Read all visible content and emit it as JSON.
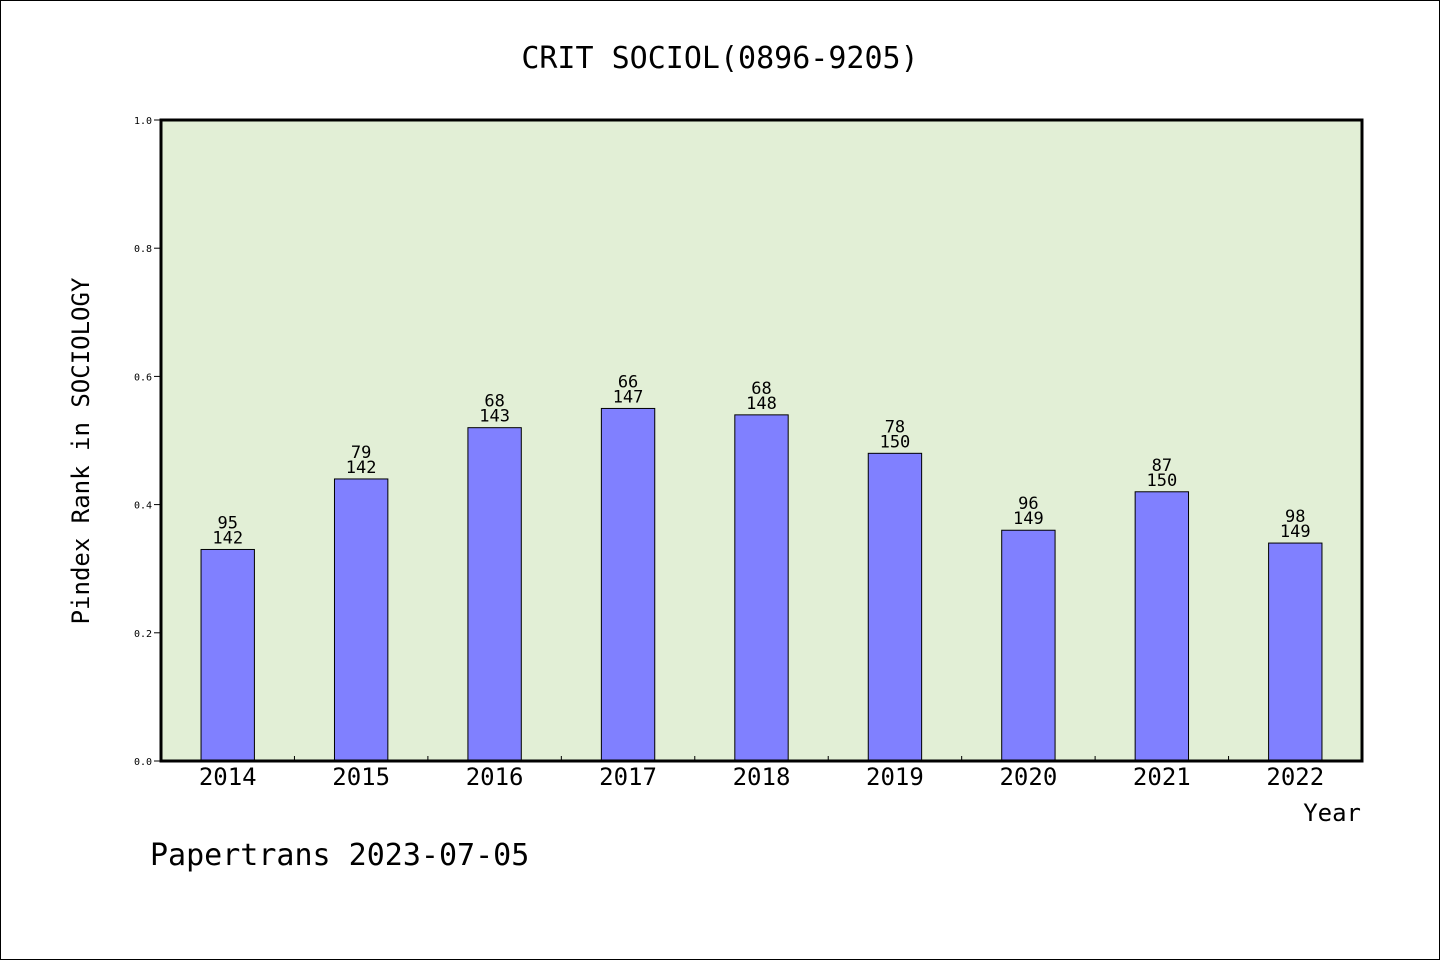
{
  "chart_data": {
    "type": "bar",
    "title": "CRIT SOCIOL(0896-9205)",
    "xlabel": "Year",
    "ylabel": "Pindex Rank in SOCIOLOGY",
    "ylim": [
      0,
      1.0
    ],
    "yticks": [
      "0.0",
      "0.2",
      "0.4",
      "0.6",
      "0.8",
      "1.0"
    ],
    "categories": [
      "2014",
      "2015",
      "2016",
      "2017",
      "2018",
      "2019",
      "2020",
      "2021",
      "2022"
    ],
    "values": [
      0.33,
      0.44,
      0.52,
      0.55,
      0.54,
      0.48,
      0.36,
      0.42,
      0.34
    ],
    "rank": [
      "95",
      "79",
      "68",
      "66",
      "68",
      "78",
      "96",
      "87",
      "98"
    ],
    "total": [
      "142",
      "142",
      "143",
      "147",
      "148",
      "150",
      "149",
      "150",
      "149"
    ],
    "footer": "Papertrans 2023-07-05",
    "colors": {
      "plot_background": "#e2efd6",
      "bar_fill": "#8080ff",
      "bar_stroke": "#000000",
      "axis": "#000000"
    }
  }
}
